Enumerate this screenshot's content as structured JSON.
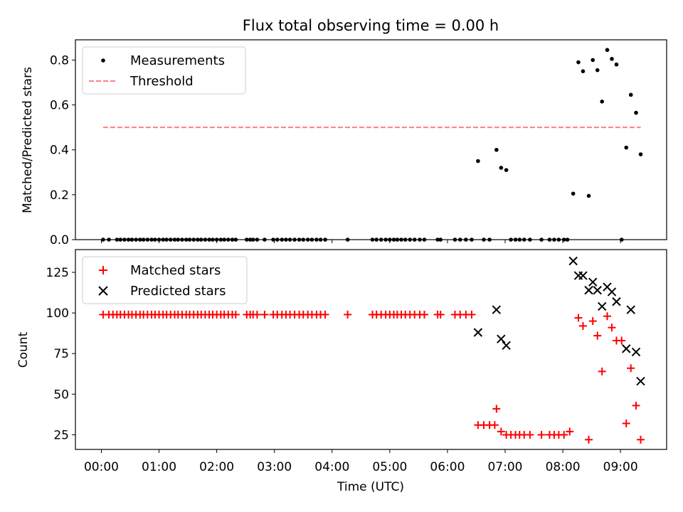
{
  "title": "Flux total observing time = 0.00 h",
  "chart_data": [
    {
      "type": "scatter",
      "panel": "top",
      "ylabel": "Matched/Predicted stars",
      "ylim": [
        0,
        0.89
      ],
      "yticks": [
        "0.0",
        "0.2",
        "0.4",
        "0.6",
        "0.8"
      ],
      "legend_position": "top-left",
      "series": [
        {
          "name": "Measurements",
          "color": "#000000",
          "marker": "dot",
          "points": [
            [
              0.03,
              0
            ],
            [
              0.13,
              0
            ],
            [
              0.27,
              0
            ],
            [
              0.33,
              0
            ],
            [
              0.4,
              0
            ],
            [
              0.47,
              0
            ],
            [
              0.53,
              0
            ],
            [
              0.6,
              0
            ],
            [
              0.67,
              0
            ],
            [
              0.73,
              0
            ],
            [
              0.8,
              0
            ],
            [
              0.87,
              0
            ],
            [
              0.93,
              0
            ],
            [
              1.0,
              0
            ],
            [
              1.07,
              0
            ],
            [
              1.13,
              0
            ],
            [
              1.2,
              0
            ],
            [
              1.27,
              0
            ],
            [
              1.33,
              0
            ],
            [
              1.4,
              0
            ],
            [
              1.47,
              0
            ],
            [
              1.53,
              0
            ],
            [
              1.6,
              0
            ],
            [
              1.67,
              0
            ],
            [
              1.73,
              0
            ],
            [
              1.8,
              0
            ],
            [
              1.87,
              0
            ],
            [
              1.93,
              0
            ],
            [
              2.0,
              0
            ],
            [
              2.07,
              0
            ],
            [
              2.13,
              0
            ],
            [
              2.2,
              0
            ],
            [
              2.27,
              0
            ],
            [
              2.33,
              0
            ],
            [
              2.52,
              0
            ],
            [
              2.58,
              0
            ],
            [
              2.63,
              0
            ],
            [
              2.7,
              0
            ],
            [
              2.83,
              0
            ],
            [
              2.98,
              0
            ],
            [
              3.05,
              0
            ],
            [
              3.13,
              0
            ],
            [
              3.2,
              0
            ],
            [
              3.27,
              0
            ],
            [
              3.35,
              0
            ],
            [
              3.43,
              0
            ],
            [
              3.5,
              0
            ],
            [
              3.58,
              0
            ],
            [
              3.65,
              0
            ],
            [
              3.73,
              0
            ],
            [
              3.8,
              0
            ],
            [
              3.88,
              0
            ],
            [
              4.27,
              0
            ],
            [
              4.7,
              0
            ],
            [
              4.77,
              0
            ],
            [
              4.85,
              0
            ],
            [
              4.93,
              0
            ],
            [
              5.0,
              0
            ],
            [
              5.07,
              0
            ],
            [
              5.13,
              0
            ],
            [
              5.2,
              0
            ],
            [
              5.27,
              0
            ],
            [
              5.35,
              0
            ],
            [
              5.43,
              0
            ],
            [
              5.52,
              0
            ],
            [
              5.6,
              0
            ],
            [
              5.83,
              0
            ],
            [
              5.88,
              0
            ],
            [
              6.13,
              0
            ],
            [
              6.22,
              0
            ],
            [
              6.32,
              0
            ],
            [
              6.42,
              0
            ],
            [
              6.53,
              0.35
            ],
            [
              6.63,
              0
            ],
            [
              6.73,
              0
            ],
            [
              6.85,
              0.4
            ],
            [
              6.93,
              0.32
            ],
            [
              7.02,
              0.31
            ],
            [
              7.1,
              0
            ],
            [
              7.18,
              0
            ],
            [
              7.25,
              0
            ],
            [
              7.33,
              0
            ],
            [
              7.43,
              0
            ],
            [
              7.63,
              0
            ],
            [
              7.77,
              0
            ],
            [
              7.85,
              0
            ],
            [
              7.93,
              0
            ],
            [
              8.02,
              0
            ],
            [
              8.08,
              0
            ],
            [
              8.18,
              0.205
            ],
            [
              8.27,
              0.79
            ],
            [
              8.35,
              0.75
            ],
            [
              8.45,
              0.195
            ],
            [
              8.52,
              0.8
            ],
            [
              8.6,
              0.755
            ],
            [
              8.68,
              0.615
            ],
            [
              8.77,
              0.845
            ],
            [
              8.85,
              0.805
            ],
            [
              8.93,
              0.78
            ],
            [
              9.02,
              0
            ],
            [
              9.1,
              0.41
            ],
            [
              9.18,
              0.645
            ],
            [
              9.27,
              0.565
            ],
            [
              9.35,
              0.38
            ]
          ]
        },
        {
          "name": "Threshold",
          "color": "#ff7f7f",
          "style": "dashed",
          "x": [
            0.03,
            9.35
          ],
          "y": [
            0.5,
            0.5
          ]
        }
      ]
    },
    {
      "type": "scatter",
      "panel": "bottom",
      "xlabel": "Time (UTC)",
      "ylabel": "Count",
      "ylim": [
        16,
        139
      ],
      "yticks": [
        "25",
        "50",
        "75",
        "100",
        "125"
      ],
      "xlim": [
        -0.45,
        9.8
      ],
      "xticks": [
        "00:00",
        "01:00",
        "02:00",
        "03:00",
        "04:00",
        "05:00",
        "06:00",
        "07:00",
        "08:00",
        "09:00"
      ],
      "legend_position": "top-left",
      "series": [
        {
          "name": "Matched stars",
          "color": "#ff0000",
          "marker": "plus",
          "points": [
            [
              0.03,
              99
            ],
            [
              0.13,
              99
            ],
            [
              0.2,
              99
            ],
            [
              0.27,
              99
            ],
            [
              0.33,
              99
            ],
            [
              0.4,
              99
            ],
            [
              0.47,
              99
            ],
            [
              0.53,
              99
            ],
            [
              0.6,
              99
            ],
            [
              0.67,
              99
            ],
            [
              0.73,
              99
            ],
            [
              0.8,
              99
            ],
            [
              0.87,
              99
            ],
            [
              0.93,
              99
            ],
            [
              1.0,
              99
            ],
            [
              1.07,
              99
            ],
            [
              1.13,
              99
            ],
            [
              1.2,
              99
            ],
            [
              1.27,
              99
            ],
            [
              1.33,
              99
            ],
            [
              1.4,
              99
            ],
            [
              1.47,
              99
            ],
            [
              1.53,
              99
            ],
            [
              1.6,
              99
            ],
            [
              1.67,
              99
            ],
            [
              1.73,
              99
            ],
            [
              1.8,
              99
            ],
            [
              1.87,
              99
            ],
            [
              1.93,
              99
            ],
            [
              2.0,
              99
            ],
            [
              2.07,
              99
            ],
            [
              2.13,
              99
            ],
            [
              2.2,
              99
            ],
            [
              2.27,
              99
            ],
            [
              2.33,
              99
            ],
            [
              2.52,
              99
            ],
            [
              2.58,
              99
            ],
            [
              2.63,
              99
            ],
            [
              2.7,
              99
            ],
            [
              2.83,
              99
            ],
            [
              2.98,
              99
            ],
            [
              3.05,
              99
            ],
            [
              3.13,
              99
            ],
            [
              3.2,
              99
            ],
            [
              3.27,
              99
            ],
            [
              3.35,
              99
            ],
            [
              3.43,
              99
            ],
            [
              3.5,
              99
            ],
            [
              3.58,
              99
            ],
            [
              3.65,
              99
            ],
            [
              3.73,
              99
            ],
            [
              3.8,
              99
            ],
            [
              3.88,
              99
            ],
            [
              4.27,
              99
            ],
            [
              4.7,
              99
            ],
            [
              4.77,
              99
            ],
            [
              4.85,
              99
            ],
            [
              4.93,
              99
            ],
            [
              5.0,
              99
            ],
            [
              5.07,
              99
            ],
            [
              5.13,
              99
            ],
            [
              5.2,
              99
            ],
            [
              5.27,
              99
            ],
            [
              5.35,
              99
            ],
            [
              5.43,
              99
            ],
            [
              5.52,
              99
            ],
            [
              5.6,
              99
            ],
            [
              5.83,
              99
            ],
            [
              5.88,
              99
            ],
            [
              6.13,
              99
            ],
            [
              6.22,
              99
            ],
            [
              6.32,
              99
            ],
            [
              6.42,
              99
            ],
            [
              6.53,
              31
            ],
            [
              6.63,
              31
            ],
            [
              6.73,
              31
            ],
            [
              6.82,
              31
            ],
            [
              6.85,
              41
            ],
            [
              6.93,
              27
            ],
            [
              7.02,
              25
            ],
            [
              7.1,
              25
            ],
            [
              7.18,
              25
            ],
            [
              7.25,
              25
            ],
            [
              7.33,
              25
            ],
            [
              7.43,
              25
            ],
            [
              7.63,
              25
            ],
            [
              7.77,
              25
            ],
            [
              7.85,
              25
            ],
            [
              7.93,
              25
            ],
            [
              8.02,
              25
            ],
            [
              8.12,
              27
            ],
            [
              8.27,
              97
            ],
            [
              8.35,
              92
            ],
            [
              8.45,
              22
            ],
            [
              8.52,
              95
            ],
            [
              8.6,
              86
            ],
            [
              8.68,
              64
            ],
            [
              8.77,
              98
            ],
            [
              8.85,
              91
            ],
            [
              8.93,
              83
            ],
            [
              9.02,
              83
            ],
            [
              9.1,
              32
            ],
            [
              9.18,
              66
            ],
            [
              9.27,
              43
            ],
            [
              9.35,
              22
            ]
          ]
        },
        {
          "name": "Predicted stars",
          "color": "#000000",
          "marker": "x",
          "points": [
            [
              6.53,
              88
            ],
            [
              6.85,
              102
            ],
            [
              6.93,
              84
            ],
            [
              7.02,
              80
            ],
            [
              8.18,
              132
            ],
            [
              8.27,
              123
            ],
            [
              8.35,
              123
            ],
            [
              8.45,
              114
            ],
            [
              8.52,
              119
            ],
            [
              8.6,
              114
            ],
            [
              8.68,
              104
            ],
            [
              8.77,
              116
            ],
            [
              8.85,
              113
            ],
            [
              8.93,
              107
            ],
            [
              9.1,
              78
            ],
            [
              9.18,
              102
            ],
            [
              9.27,
              76
            ],
            [
              9.35,
              58
            ]
          ]
        }
      ]
    }
  ]
}
